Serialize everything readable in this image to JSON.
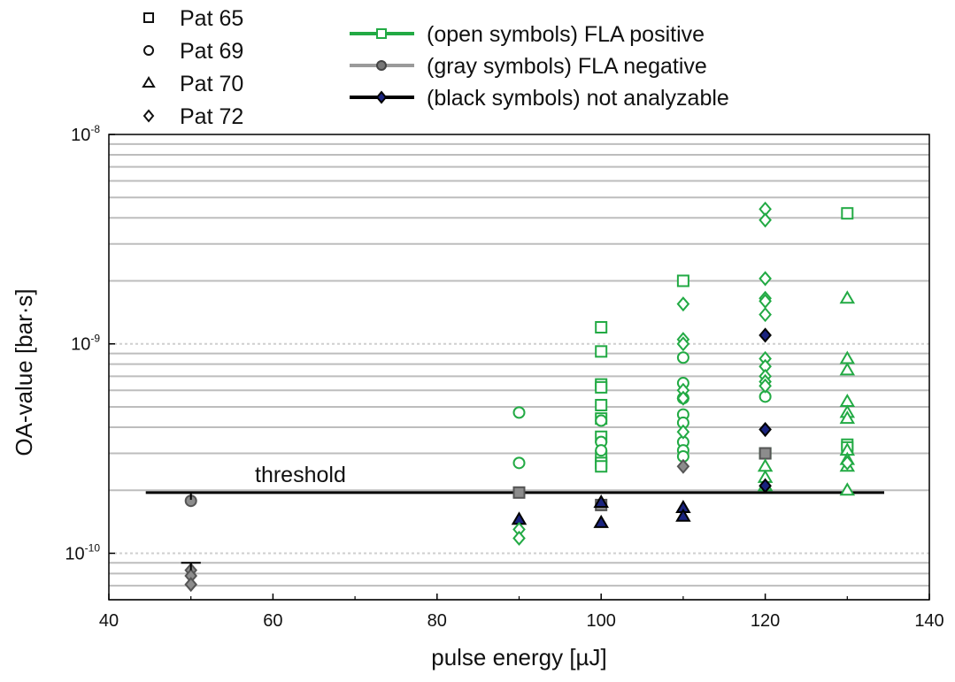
{
  "chart_data": {
    "type": "scatter",
    "xlabel": "pulse energy [µJ]",
    "ylabel": "OA-value [bar·s]",
    "xlim": [
      40,
      140
    ],
    "ylim": [
      6e-11,
      1e-08
    ],
    "yscale": "log",
    "x_ticks": [
      40,
      60,
      80,
      100,
      120,
      140
    ],
    "y_ticks": [
      {
        "value": 1e-10,
        "base": "10",
        "exp": "-10"
      },
      {
        "value": 1e-09,
        "base": "10",
        "exp": "-9"
      },
      {
        "value": 1e-08,
        "base": "10",
        "exp": "-8"
      }
    ],
    "grid": true,
    "threshold": {
      "label": "threshold",
      "value": 1.95e-10,
      "x_range": [
        44.5,
        134.5
      ]
    },
    "patient_legend": [
      {
        "label": "Pat 65",
        "marker": "square"
      },
      {
        "label": "Pat 69",
        "marker": "circle"
      },
      {
        "label": "Pat 70",
        "marker": "triangle"
      },
      {
        "label": "Pat 72",
        "marker": "diamond"
      }
    ],
    "status_legend": [
      {
        "label": "(open symbols) FLA positive",
        "color": "#22aa44",
        "marker": "square",
        "fill": "none"
      },
      {
        "label": "(gray symbols) FLA negative",
        "color": "#9a9a9a",
        "marker": "circle",
        "fill": "#777777"
      },
      {
        "label": "(black symbols) not analyzable",
        "color": "#000000",
        "marker": "diamond",
        "fill": "#1a237e"
      }
    ],
    "colors": {
      "positive": "#22aa44",
      "negative": "#888888",
      "not_analyzable": "#1a237e",
      "threshold": "#000000"
    },
    "series": [
      {
        "patient": "Pat 65",
        "marker": "square",
        "status": "positive",
        "points": [
          [
            100,
            1.2e-09
          ],
          [
            100,
            9.2e-10
          ],
          [
            100,
            6.4e-10
          ],
          [
            100,
            6.2e-10
          ],
          [
            100,
            5.1e-10
          ],
          [
            100,
            4.4e-10
          ],
          [
            100,
            3.6e-10
          ],
          [
            100,
            2.9e-10
          ],
          [
            100,
            2.7e-10
          ],
          [
            100,
            2.6e-10
          ],
          [
            110,
            2e-09
          ],
          [
            120,
            3e-10
          ],
          [
            130,
            4.2e-09
          ],
          [
            130,
            3.3e-10
          ],
          [
            130,
            3.2e-10
          ]
        ]
      },
      {
        "patient": "Pat 65",
        "marker": "square",
        "status": "negative",
        "points": [
          [
            90,
            1.95e-10
          ],
          [
            100,
            1.7e-10
          ],
          [
            120,
            3e-10
          ]
        ]
      },
      {
        "patient": "Pat 69",
        "marker": "circle",
        "status": "positive",
        "points": [
          [
            90,
            4.7e-10
          ],
          [
            90,
            2.7e-10
          ],
          [
            100,
            4.3e-10
          ],
          [
            100,
            3.4e-10
          ],
          [
            100,
            3.1e-10
          ],
          [
            110,
            8.6e-10
          ],
          [
            110,
            6.5e-10
          ],
          [
            110,
            5.5e-10
          ],
          [
            110,
            4.6e-10
          ],
          [
            110,
            4.2e-10
          ],
          [
            110,
            3.4e-10
          ],
          [
            110,
            3.1e-10
          ],
          [
            110,
            2.9e-10
          ],
          [
            120,
            5.6e-10
          ]
        ]
      },
      {
        "patient": "Pat 69",
        "marker": "circle",
        "status": "negative",
        "points": [
          [
            50,
            1.78e-10
          ]
        ]
      },
      {
        "patient": "Pat 70",
        "marker": "triangle",
        "status": "positive",
        "points": [
          [
            120,
            2.6e-10
          ],
          [
            120,
            2.3e-10
          ],
          [
            120,
            2.1e-10
          ],
          [
            130,
            1.65e-09
          ],
          [
            130,
            8.5e-10
          ],
          [
            130,
            7.5e-10
          ],
          [
            130,
            5.3e-10
          ],
          [
            130,
            4.7e-10
          ],
          [
            130,
            4.4e-10
          ],
          [
            130,
            3.1e-10
          ],
          [
            130,
            2.8e-10
          ],
          [
            130,
            2.6e-10
          ],
          [
            130,
            2e-10
          ]
        ]
      },
      {
        "patient": "Pat 70",
        "marker": "triangle",
        "status": "not_analyzable",
        "points": [
          [
            90,
            1.45e-10
          ],
          [
            100,
            1.75e-10
          ],
          [
            100,
            1.4e-10
          ],
          [
            110,
            1.65e-10
          ],
          [
            110,
            1.5e-10
          ]
        ]
      },
      {
        "patient": "Pat 72",
        "marker": "diamond",
        "status": "positive",
        "points": [
          [
            90,
            1.3e-10
          ],
          [
            90,
            1.18e-10
          ],
          [
            110,
            1.55e-09
          ],
          [
            110,
            1.05e-09
          ],
          [
            110,
            1e-09
          ],
          [
            110,
            6e-10
          ],
          [
            110,
            5.5e-10
          ],
          [
            110,
            3.8e-10
          ],
          [
            120,
            4.4e-09
          ],
          [
            120,
            3.9e-09
          ],
          [
            120,
            2.05e-09
          ],
          [
            120,
            1.65e-09
          ],
          [
            120,
            1.6e-09
          ],
          [
            120,
            1.38e-09
          ],
          [
            120,
            8.5e-10
          ],
          [
            120,
            7.8e-10
          ],
          [
            120,
            7e-10
          ],
          [
            120,
            6.6e-10
          ],
          [
            120,
            6.3e-10
          ],
          [
            130,
            2.7e-10
          ]
        ]
      },
      {
        "patient": "Pat 72",
        "marker": "diamond",
        "status": "negative",
        "points": [
          [
            50,
            8.3e-11
          ],
          [
            50,
            7.8e-11
          ],
          [
            50,
            7.1e-11
          ],
          [
            110,
            2.6e-10
          ]
        ]
      },
      {
        "patient": "Pat 72",
        "marker": "diamond",
        "status": "not_analyzable",
        "points": [
          [
            120,
            1.1e-09
          ],
          [
            120,
            3.9e-10
          ],
          [
            120,
            2.1e-10
          ]
        ]
      }
    ]
  }
}
